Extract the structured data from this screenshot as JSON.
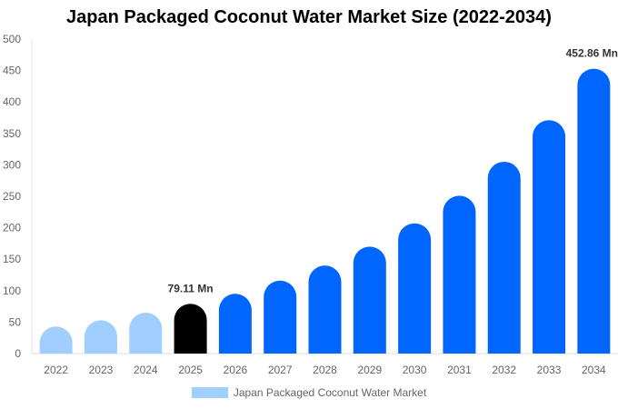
{
  "chart_data": {
    "type": "bar",
    "title": "Japan Packaged Coconut Water Market Size (2022-2034)",
    "categories": [
      "2022",
      "2023",
      "2024",
      "2025",
      "2026",
      "2027",
      "2028",
      "2029",
      "2030",
      "2031",
      "2032",
      "2033",
      "2034"
    ],
    "series": [
      {
        "name": "Japan Packaged Coconut Water Market",
        "values": [
          43,
          53,
          65,
          79.11,
          95,
          116,
          140,
          170,
          207,
          251,
          305,
          371,
          452.86
        ]
      }
    ],
    "ylim": [
      0,
      500
    ],
    "yticks": [
      0,
      50,
      100,
      150,
      200,
      250,
      300,
      350,
      400,
      450,
      500
    ],
    "grid": false,
    "legend": "bottom",
    "data_labels": {
      "3": "79.11 Mn",
      "12": "452.86 Mn"
    },
    "colors": {
      "historical": "#a0cfff",
      "current": "#000000",
      "forecast": "#0066ff"
    }
  }
}
